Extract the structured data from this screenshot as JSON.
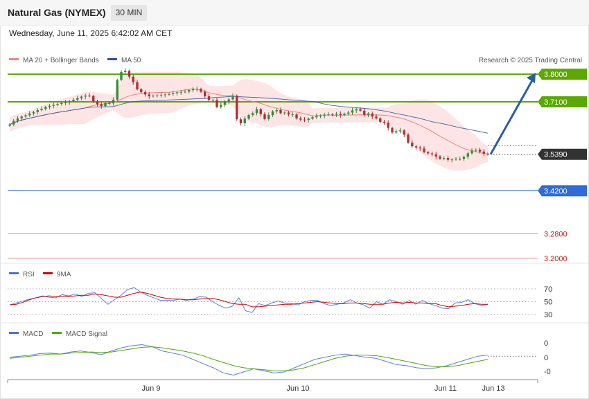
{
  "header": {
    "title": "Natural Gas (NYMEX)",
    "timeframe": "30 MIN",
    "datetime": "Wednesday, June 11, 2025 6:42:02 AM CET"
  },
  "legend": {
    "ma20": "MA 20 + Bollinger Bands",
    "ma50": "MA 50",
    "copyright": "Research © 2025 Trading Central"
  },
  "colors": {
    "up": "#3a8a3a",
    "down": "#b03030",
    "ma20": "#f08080",
    "ma50": "#2b4f9e",
    "band": "#fde0e0",
    "resistance": "#5aa800",
    "support": "#2f6bd9",
    "support_far": "#f08a8a",
    "arrow": "#2b5ca8",
    "last": "#333333"
  },
  "chart_data": [
    {
      "type": "candlestick",
      "title": "Natural Gas (NYMEX)",
      "ylim": [
        3.15,
        3.85
      ],
      "x_labels": [
        "Jun 9",
        "Jun 10",
        "Jun 11",
        "Jun 13"
      ],
      "last_price": 3.539,
      "levels": [
        {
          "label": "3.8000",
          "value": 3.8,
          "kind": "resistance"
        },
        {
          "label": "3.7100",
          "value": 3.71,
          "kind": "resistance"
        },
        {
          "label": "3.5390",
          "value": 3.539,
          "kind": "last"
        },
        {
          "label": "3.4200",
          "value": 3.42,
          "kind": "support"
        },
        {
          "label": "3.2800",
          "value": 3.28,
          "kind": "support_far"
        },
        {
          "label": "3.2000",
          "value": 3.2,
          "kind": "support_far"
        }
      ],
      "forecast": [
        3.539,
        3.8
      ],
      "close": [
        3.636,
        3.648,
        3.656,
        3.662,
        3.666,
        3.672,
        3.677,
        3.683,
        3.687,
        3.693,
        3.697,
        3.7,
        3.703,
        3.706,
        3.708,
        3.712,
        3.717,
        3.722,
        3.727,
        3.73,
        3.729,
        3.711,
        3.702,
        3.696,
        3.706,
        3.705,
        3.717,
        3.781,
        3.807,
        3.811,
        3.792,
        3.774,
        3.751,
        3.742,
        3.734,
        3.728,
        3.73,
        3.731,
        3.733,
        3.734,
        3.735,
        3.738,
        3.741,
        3.742,
        3.743,
        3.748,
        3.752,
        3.752,
        3.743,
        3.728,
        3.716,
        3.716,
        3.693,
        3.7,
        3.712,
        3.718,
        3.73,
        3.653,
        3.64,
        3.655,
        3.667,
        3.673,
        3.686,
        3.67,
        3.654,
        3.667,
        3.679,
        3.683,
        3.673,
        3.675,
        3.669,
        3.669,
        3.656,
        3.652,
        3.651,
        3.655,
        3.66,
        3.664,
        3.665,
        3.668,
        3.669,
        3.668,
        3.671,
        3.667,
        3.671,
        3.675,
        3.682,
        3.686,
        3.681,
        3.667,
        3.672,
        3.662,
        3.656,
        3.645,
        3.642,
        3.625,
        3.61,
        3.614,
        3.617,
        3.603,
        3.577,
        3.565,
        3.561,
        3.558,
        3.546,
        3.542,
        3.539,
        3.532,
        3.525,
        3.527,
        3.521,
        3.522,
        3.524,
        3.524,
        3.531,
        3.542,
        3.551,
        3.554,
        3.548,
        3.541,
        3.539
      ],
      "rsi": {
        "levels": [
          70,
          50,
          30
        ],
        "rsi_series": [
          45,
          48,
          51,
          54,
          56,
          59,
          57,
          56,
          61,
          59,
          62,
          58,
          63,
          64,
          55,
          46,
          53,
          60,
          69,
          72,
          65,
          60,
          56,
          52,
          52,
          52,
          54,
          52,
          54,
          58,
          57,
          50,
          44,
          40,
          43,
          56,
          36,
          33,
          47,
          44,
          48,
          51,
          48,
          47,
          45,
          50,
          52,
          52,
          47,
          44,
          46,
          48,
          53,
          48,
          45,
          40,
          50,
          46,
          53,
          50,
          46,
          52,
          46,
          52,
          47,
          44,
          40,
          39,
          48,
          49,
          53,
          47,
          44,
          46
        ],
        "ma9_series": [
          45,
          46,
          49,
          53,
          56,
          58,
          59,
          58,
          58,
          58,
          59,
          60,
          60,
          62,
          61,
          59,
          57,
          57,
          60,
          63,
          65,
          63,
          60,
          57,
          55,
          54,
          54,
          53,
          53,
          54,
          55,
          55,
          53,
          50,
          47,
          46,
          46,
          42,
          42,
          43,
          44,
          45,
          46,
          46,
          47,
          48,
          49,
          50,
          49,
          48,
          47,
          47,
          48,
          48,
          47,
          46,
          46,
          46,
          48,
          49,
          48,
          49,
          48,
          48,
          47,
          47,
          44,
          42,
          43,
          44,
          46,
          47,
          46,
          46
        ]
      },
      "macd": {
        "levels": [
          "0",
          "0",
          "-0"
        ],
        "macd_series": [
          0.0,
          0.002,
          0.004,
          0.007,
          0.008,
          0.006,
          0.01,
          0.012,
          0.009,
          0.005,
          0.012,
          0.018,
          0.022,
          0.024,
          0.02,
          0.012,
          0.008,
          0.004,
          -0.004,
          -0.012,
          -0.02,
          -0.03,
          -0.034,
          -0.028,
          -0.022,
          -0.026,
          -0.03,
          -0.028,
          -0.02,
          -0.012,
          -0.004,
          0.0,
          0.004,
          0.006,
          0.003,
          0.0,
          -0.002,
          -0.008,
          -0.014,
          -0.016,
          -0.02,
          -0.022,
          -0.02,
          -0.016,
          -0.01,
          -0.004,
          0.002,
          0.004
        ],
        "signal_series": [
          -0.002,
          0.0,
          0.002,
          0.004,
          0.006,
          0.006,
          0.008,
          0.009,
          0.01,
          0.009,
          0.01,
          0.013,
          0.016,
          0.019,
          0.02,
          0.018,
          0.015,
          0.012,
          0.008,
          0.003,
          -0.004,
          -0.01,
          -0.016,
          -0.02,
          -0.022,
          -0.024,
          -0.026,
          -0.026,
          -0.024,
          -0.02,
          -0.014,
          -0.008,
          -0.002,
          0.002,
          0.004,
          0.004,
          0.003,
          0.0,
          -0.004,
          -0.008,
          -0.012,
          -0.016,
          -0.018,
          -0.018,
          -0.016,
          -0.012,
          -0.008,
          -0.004
        ]
      }
    }
  ],
  "lower": {
    "rsi_label": "RSI",
    "ma9_label": "9MA",
    "macd_label": "MACD",
    "signal_label": "MACD Signal",
    "rsi_ticks": [
      "70",
      "50",
      "30"
    ],
    "macd_ticks": [
      "0",
      "0",
      "-0"
    ]
  }
}
